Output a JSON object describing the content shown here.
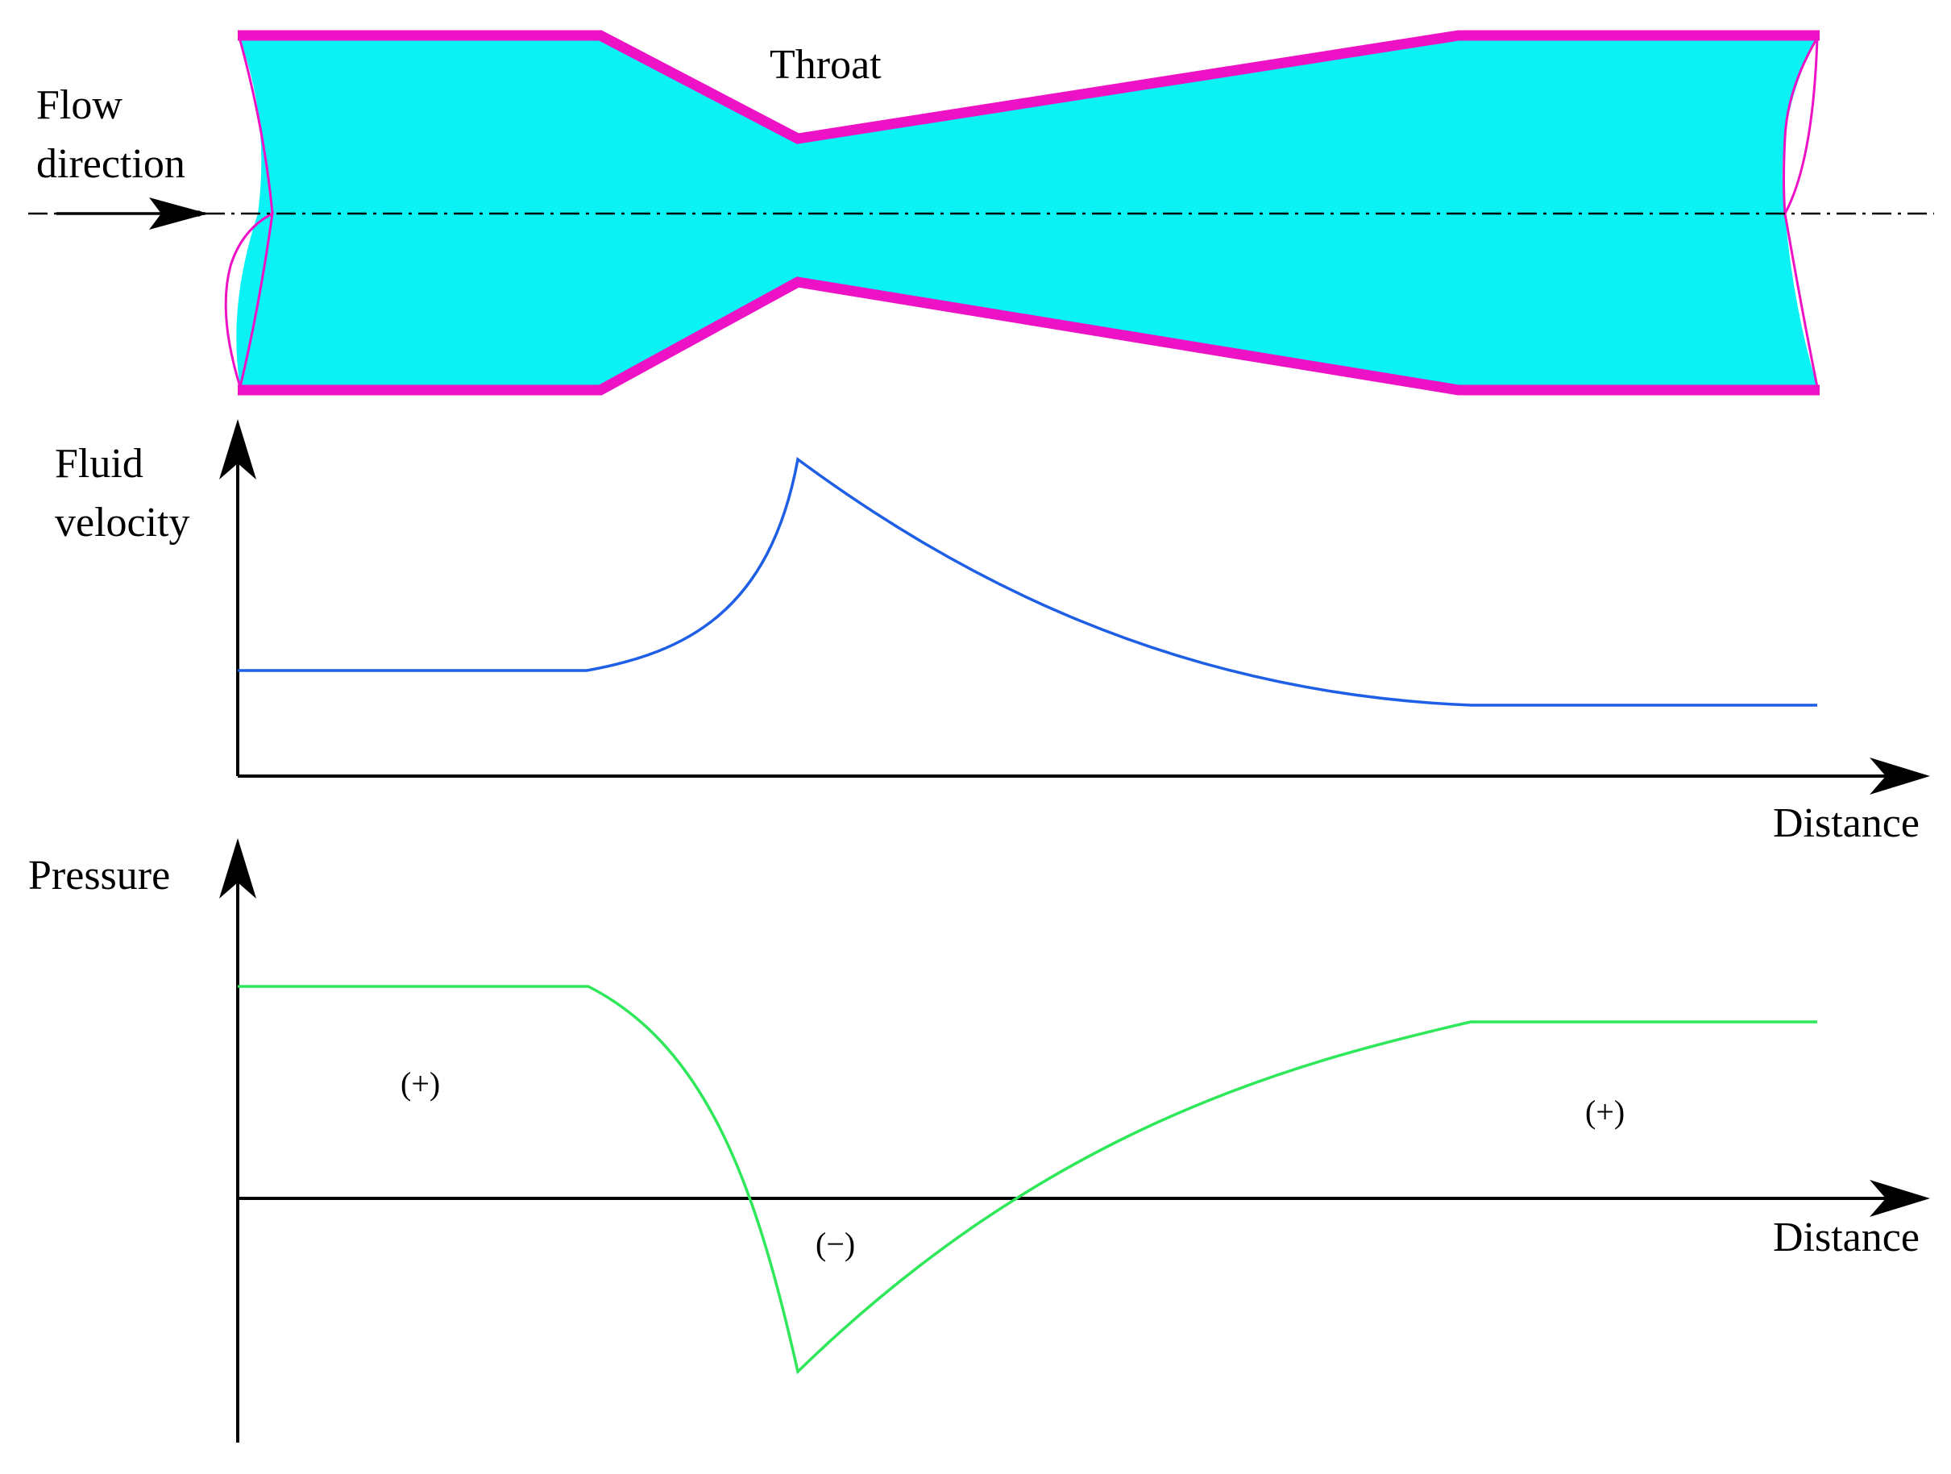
{
  "labels": {
    "flow_direction_line1": "Flow",
    "flow_direction_line2": "direction",
    "throat": "Throat",
    "velocity_axis_line1": "Fluid",
    "velocity_axis_line2": "velocity",
    "velocity_x_axis": "Distance",
    "pressure_axis": "Pressure",
    "pressure_x_axis": "Distance",
    "region_inlet": "(+)",
    "region_throat": "(−)",
    "region_outlet": "(+)"
  },
  "colors": {
    "pipe_wall": "#ee12c6",
    "fluid": "#0af2f4",
    "velocity_curve": "#1e5fe6",
    "pressure_curve": "#2ee85a",
    "axes": "#000000"
  }
}
